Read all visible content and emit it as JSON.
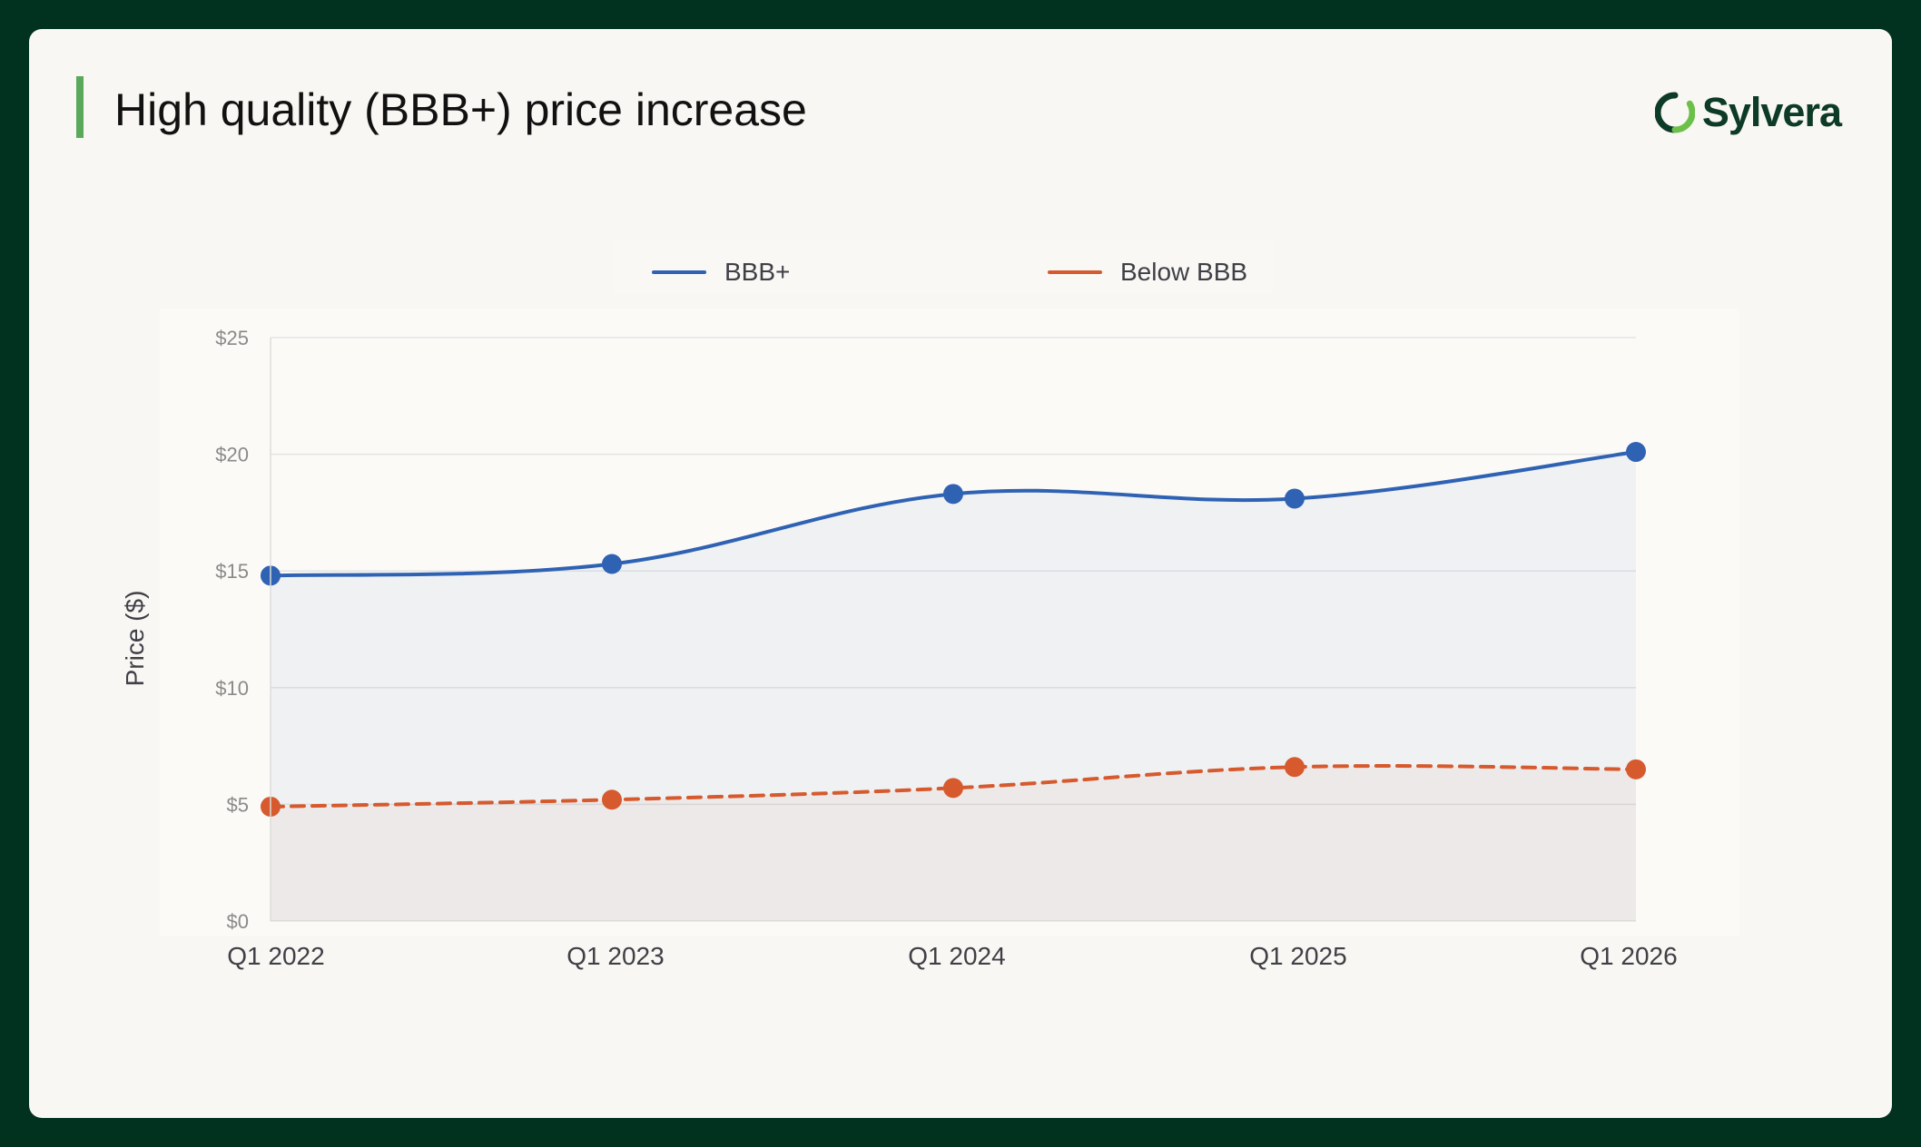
{
  "header": {
    "title": "High quality (BBB+) price increase",
    "brand_name": "Sylvera"
  },
  "colors": {
    "background": "#013220",
    "card": "#f8f7f3",
    "accent": "#5aa85a",
    "bbb_plus": "#2f62b3",
    "below_bbb": "#d65a2e"
  },
  "chart_data": {
    "type": "line",
    "title": "",
    "xlabel": "",
    "ylabel": "Price ($)",
    "categories": [
      "Q1 2022",
      "Q1 2023",
      "Q1 2024",
      "Q1 2025",
      "Q1 2026"
    ],
    "ylim": [
      0,
      25
    ],
    "yticks": [
      0,
      5,
      10,
      15,
      20,
      25
    ],
    "ytick_labels": [
      "$0",
      "$5",
      "$10",
      "$15",
      "$20",
      "$25"
    ],
    "grid": true,
    "legend_position": "top-center",
    "series": [
      {
        "name": "BBB+",
        "values": [
          14.8,
          15.3,
          18.3,
          18.1,
          20.1
        ],
        "color": "#2f62b3",
        "style": "solid",
        "fill": true
      },
      {
        "name": "Below BBB",
        "values": [
          4.9,
          5.2,
          5.7,
          6.6,
          6.5
        ],
        "color": "#d65a2e",
        "style": "dashed",
        "fill": true
      }
    ]
  }
}
